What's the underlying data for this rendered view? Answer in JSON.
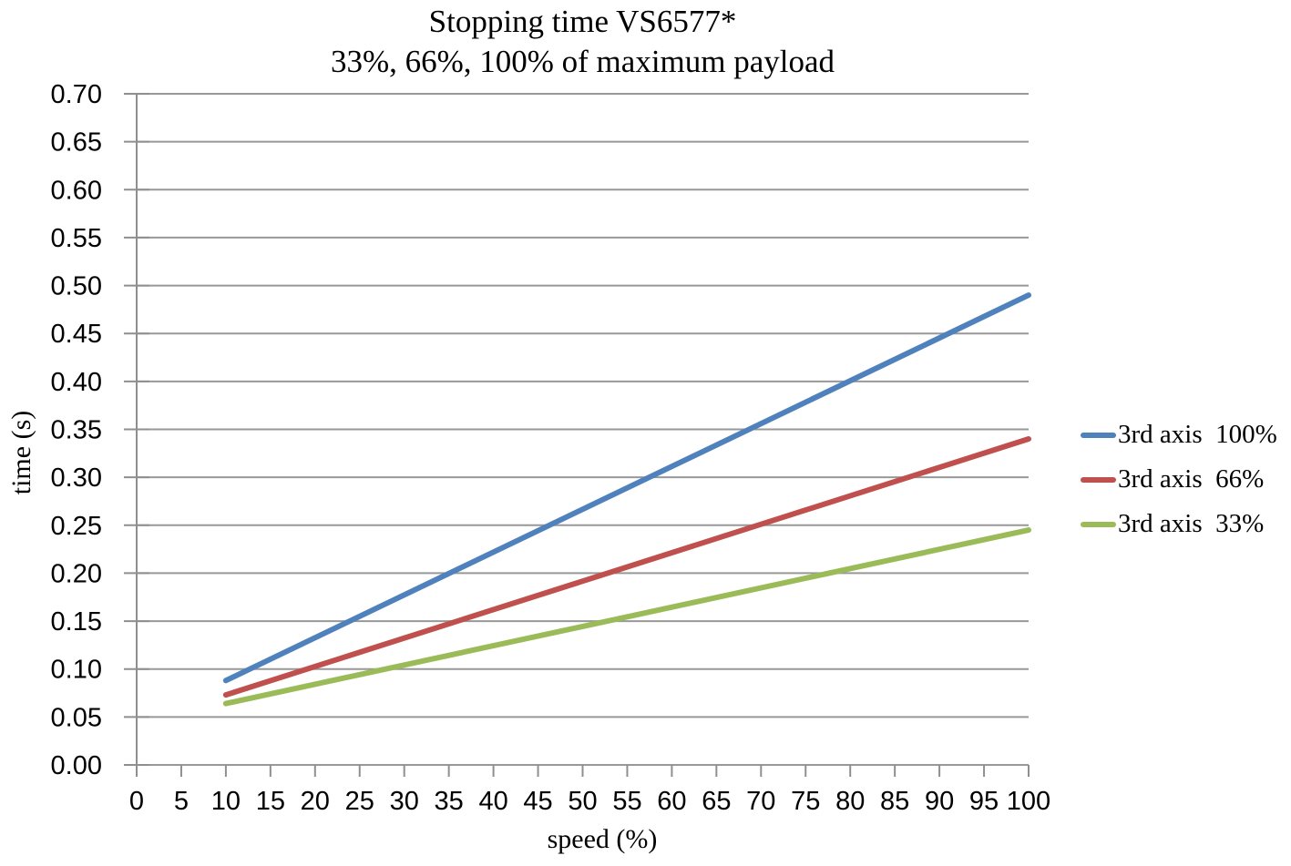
{
  "chart_data": {
    "type": "line",
    "title": "Stopping time VS6577*",
    "subtitle": "33%, 66%, 100% of maximum payload",
    "xlabel": "speed (%)",
    "ylabel": "time (s)",
    "xlim": [
      0,
      100
    ],
    "ylim": [
      0,
      0.7
    ],
    "x_tick_step": 5,
    "y_tick_step": 0.05,
    "y_tick_decimals": 2,
    "grid": "horizontal-only",
    "legend_position": "right-center",
    "colors": {
      "axis": "#8F8F8F",
      "gridline": "#989898",
      "tick": "#8F8F8F",
      "text": "#000000",
      "background": "#FFFFFF"
    },
    "series": [
      {
        "name": "3rd axis  100%",
        "color": "#4F81BD",
        "x": [
          10,
          100
        ],
        "y": [
          0.088,
          0.49
        ]
      },
      {
        "name": "3rd axis  66%",
        "color": "#C0504D",
        "x": [
          10,
          100
        ],
        "y": [
          0.073,
          0.34
        ]
      },
      {
        "name": "3rd axis  33%",
        "color": "#9BBB59",
        "x": [
          10,
          100
        ],
        "y": [
          0.064,
          0.245
        ]
      }
    ]
  }
}
